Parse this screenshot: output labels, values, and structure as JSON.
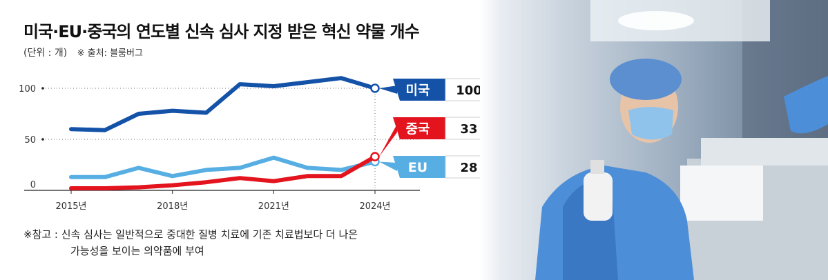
{
  "header": {
    "title": "미국·EU·중국의 연도별 신속 심사 지정 받은 혁신 약물 개수",
    "unit": "(단위 : 개)",
    "source": "※ 출처: 블룸버그"
  },
  "note": {
    "line1": "※참고 : 신속 심사는 일반적으로 중대한 질병 치료에 기존 치료법보다 더 나은",
    "line2": "가능성을 보이는 의약품에 부여"
  },
  "chart_data": {
    "type": "line",
    "x": [
      2015,
      2016,
      2017,
      2018,
      2019,
      2020,
      2021,
      2022,
      2023,
      2024
    ],
    "xticks": [
      "2015년",
      "2018년",
      "2021년",
      "2024년"
    ],
    "yticks": [
      "0",
      "50",
      "100"
    ],
    "ylim": [
      0,
      100
    ],
    "series": [
      {
        "name": "미국",
        "values": [
          60,
          59,
          75,
          78,
          76,
          104,
          102,
          106,
          110,
          100
        ],
        "end_label": "100",
        "color": "#1452a8"
      },
      {
        "name": "중국",
        "values": [
          2,
          2,
          3,
          5,
          8,
          12,
          9,
          14,
          14,
          33
        ],
        "end_label": "33",
        "color": "#e4141e"
      },
      {
        "name": "EU",
        "values": [
          13,
          13,
          22,
          14,
          20,
          22,
          32,
          22,
          20,
          28
        ],
        "end_label": "28",
        "color": "#57aee3"
      }
    ]
  },
  "photo": {
    "alt": "icon:lab-researcher-photo"
  }
}
